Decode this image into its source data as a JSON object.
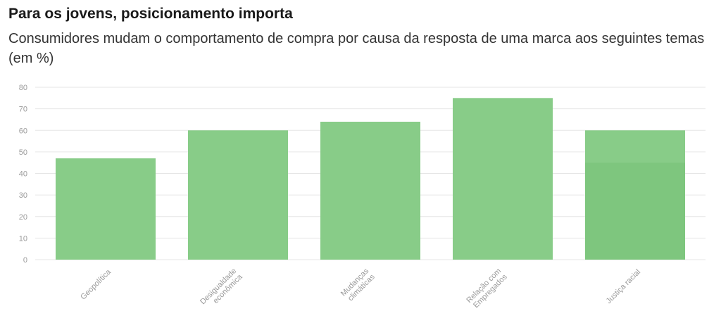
{
  "header": {
    "title": "Para os jovens, posicionamento importa",
    "subtitle": "Consumidores mudam o comportamento de compra por causa da resposta de uma marca aos seguintes temas (em %)"
  },
  "colors": {
    "bar": "#88cc88",
    "bar_overlap": "#7dc47d",
    "grid": "#e6e6e6",
    "tick": "#9a9a9a"
  },
  "chart_data": {
    "type": "bar",
    "title": "Para os jovens, posicionamento importa",
    "subtitle": "Consumidores mudam o comportamento de compra por causa da resposta de uma marca aos seguintes temas (em %)",
    "categories": [
      [
        "Geopolítica"
      ],
      [
        "Desigualdade",
        "econômica"
      ],
      [
        "Mudanças",
        "climáticas"
      ],
      [
        "Relação com",
        "Empregados"
      ],
      [
        "Justiça racial"
      ]
    ],
    "series": [
      {
        "values": [
          47,
          60,
          64,
          75,
          60
        ]
      },
      {
        "values": [
          null,
          null,
          null,
          null,
          45
        ]
      }
    ],
    "ylim": [
      0,
      80
    ],
    "yticks": [
      0,
      10,
      20,
      30,
      40,
      50,
      60,
      70,
      80
    ],
    "grid": true,
    "xlabel": "",
    "ylabel": ""
  }
}
